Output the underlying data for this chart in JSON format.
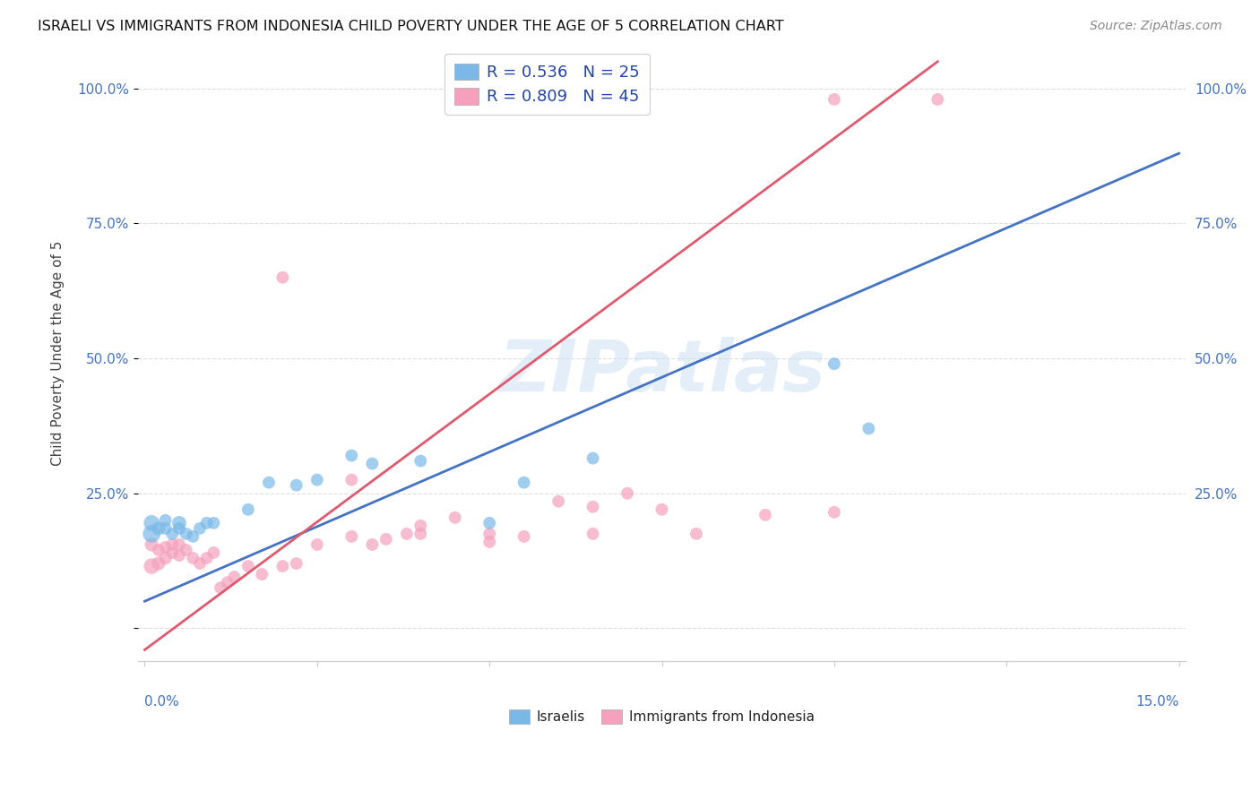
{
  "title": "ISRAELI VS IMMIGRANTS FROM INDONESIA CHILD POVERTY UNDER THE AGE OF 5 CORRELATION CHART",
  "source": "Source: ZipAtlas.com",
  "ylabel": "Child Poverty Under the Age of 5",
  "legend_label1": "R = 0.536   N = 25",
  "legend_label2": "R = 0.809   N = 45",
  "legend_labels_bottom": [
    "Israelis",
    "Immigrants from Indonesia"
  ],
  "color_blue": "#7ab8e8",
  "color_pink": "#f5a0bc",
  "color_blue_line": "#4472c4",
  "color_pink_line": "#e05a6e",
  "watermark": "ZIPatlas",
  "xmin": 0.0,
  "xmax": 0.15,
  "ymin": -0.06,
  "ymax": 1.08,
  "ytick_vals": [
    0.0,
    0.25,
    0.5,
    0.75,
    1.0
  ],
  "ytick_labels": [
    "",
    "25.0%",
    "50.0%",
    "75.0%",
    "100.0%"
  ],
  "blue_line": {
    "x0": 0.0,
    "y0": 0.05,
    "x1": 0.15,
    "y1": 0.88
  },
  "pink_line": {
    "x0": 0.0,
    "y0": -0.04,
    "x1": 0.115,
    "y1": 1.05
  },
  "israelis": {
    "x": [
      0.001,
      0.001,
      0.002,
      0.003,
      0.003,
      0.004,
      0.005,
      0.005,
      0.006,
      0.007,
      0.008,
      0.009,
      0.01,
      0.015,
      0.018,
      0.022,
      0.025,
      0.03,
      0.033,
      0.04,
      0.05,
      0.055,
      0.065,
      0.1,
      0.105
    ],
    "y": [
      0.175,
      0.195,
      0.185,
      0.2,
      0.185,
      0.175,
      0.195,
      0.185,
      0.175,
      0.17,
      0.185,
      0.195,
      0.195,
      0.22,
      0.27,
      0.265,
      0.275,
      0.32,
      0.305,
      0.31,
      0.195,
      0.27,
      0.315,
      0.49,
      0.37
    ],
    "sizes": [
      200,
      160,
      120,
      100,
      100,
      100,
      130,
      100,
      100,
      100,
      100,
      100,
      100,
      100,
      100,
      100,
      100,
      100,
      100,
      100,
      100,
      100,
      100,
      100,
      100
    ]
  },
  "indonesia": {
    "x": [
      0.001,
      0.001,
      0.002,
      0.002,
      0.003,
      0.003,
      0.004,
      0.004,
      0.005,
      0.005,
      0.006,
      0.007,
      0.008,
      0.009,
      0.01,
      0.011,
      0.012,
      0.013,
      0.015,
      0.017,
      0.02,
      0.022,
      0.025,
      0.03,
      0.033,
      0.035,
      0.038,
      0.04,
      0.045,
      0.05,
      0.055,
      0.06,
      0.065,
      0.07,
      0.075,
      0.08,
      0.09,
      0.1,
      0.1,
      0.115,
      0.02,
      0.03,
      0.04,
      0.05,
      0.065
    ],
    "y": [
      0.115,
      0.155,
      0.12,
      0.145,
      0.13,
      0.15,
      0.14,
      0.155,
      0.135,
      0.155,
      0.145,
      0.13,
      0.12,
      0.13,
      0.14,
      0.075,
      0.085,
      0.095,
      0.115,
      0.1,
      0.115,
      0.12,
      0.155,
      0.17,
      0.155,
      0.165,
      0.175,
      0.19,
      0.205,
      0.16,
      0.17,
      0.235,
      0.225,
      0.25,
      0.22,
      0.175,
      0.21,
      0.98,
      0.215,
      0.98,
      0.65,
      0.275,
      0.175,
      0.175,
      0.175
    ],
    "sizes": [
      160,
      120,
      120,
      100,
      110,
      100,
      100,
      100,
      100,
      100,
      100,
      100,
      100,
      100,
      100,
      100,
      100,
      100,
      100,
      100,
      100,
      100,
      100,
      100,
      100,
      100,
      100,
      100,
      100,
      100,
      100,
      100,
      100,
      100,
      100,
      100,
      100,
      100,
      100,
      100,
      100,
      100,
      100,
      100,
      100
    ]
  }
}
